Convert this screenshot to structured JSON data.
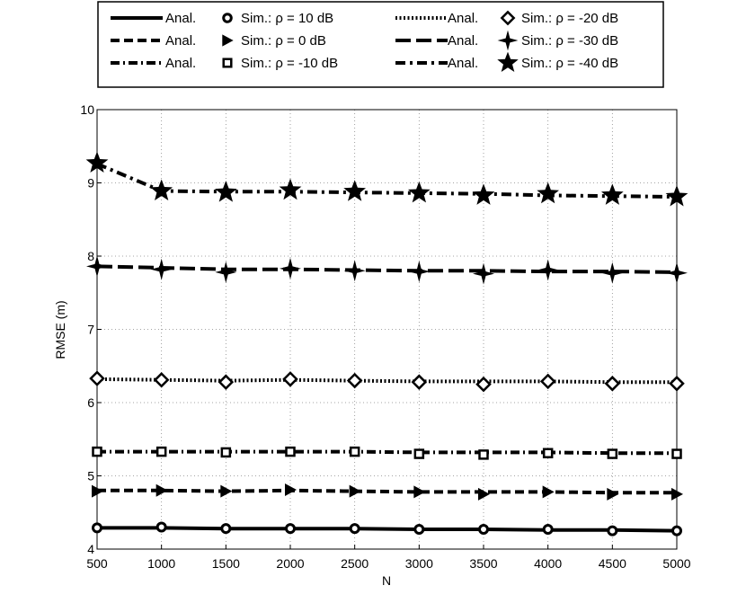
{
  "chart_data": {
    "type": "line",
    "title": "",
    "xlabel": "N",
    "ylabel": "RMSE (m)",
    "xlim": [
      500,
      5000
    ],
    "ylim": [
      4,
      10
    ],
    "x": [
      500,
      1000,
      1500,
      2000,
      2500,
      3000,
      3500,
      4000,
      4500,
      5000
    ],
    "xticks": [
      "500",
      "1000",
      "1500",
      "2000",
      "2500",
      "3000",
      "3500",
      "4000",
      "4500",
      "5000"
    ],
    "yticks": [
      "4",
      "5",
      "6",
      "7",
      "8",
      "9",
      "10"
    ],
    "grid": true,
    "legend_position": "top",
    "series": [
      {
        "name": "Anal.",
        "style": "solid",
        "role": "analytical",
        "values": [
          4.29,
          4.29,
          4.28,
          4.28,
          4.28,
          4.27,
          4.27,
          4.26,
          4.26,
          4.25
        ]
      },
      {
        "name": "Anal.",
        "style": "dashed",
        "role": "analytical",
        "values": [
          4.8,
          4.8,
          4.79,
          4.8,
          4.79,
          4.78,
          4.78,
          4.78,
          4.77,
          4.77
        ]
      },
      {
        "name": "Anal.",
        "style": "dashdot",
        "role": "analytical",
        "values": [
          5.33,
          5.33,
          5.33,
          5.33,
          5.33,
          5.32,
          5.32,
          5.32,
          5.31,
          5.31
        ]
      },
      {
        "name": "Anal.",
        "style": "dotted",
        "role": "analytical",
        "values": [
          6.32,
          6.31,
          6.3,
          6.31,
          6.3,
          6.29,
          6.29,
          6.29,
          6.28,
          6.28
        ]
      },
      {
        "name": "Anal.",
        "style": "longdash",
        "role": "analytical",
        "values": [
          7.86,
          7.84,
          7.82,
          7.82,
          7.81,
          7.8,
          7.8,
          7.79,
          7.79,
          7.78
        ]
      },
      {
        "name": "Anal.",
        "style": "dashdotdot",
        "role": "analytical",
        "values": [
          9.26,
          8.89,
          8.88,
          8.88,
          8.87,
          8.86,
          8.85,
          8.83,
          8.82,
          8.81
        ]
      },
      {
        "name": "Sim.: ρ = 10 dB",
        "marker": "circle",
        "role": "simulation",
        "values": [
          4.29,
          4.3,
          4.28,
          4.28,
          4.28,
          4.27,
          4.27,
          4.27,
          4.25,
          4.25
        ]
      },
      {
        "name": "Sim.: ρ = 0 dB",
        "marker": "triangle-right",
        "role": "simulation",
        "values": [
          4.79,
          4.8,
          4.79,
          4.81,
          4.79,
          4.78,
          4.75,
          4.78,
          4.75,
          4.75
        ]
      },
      {
        "name": "Sim.: ρ = -10 dB",
        "marker": "square",
        "role": "simulation",
        "values": [
          5.33,
          5.33,
          5.32,
          5.33,
          5.33,
          5.3,
          5.29,
          5.31,
          5.3,
          5.3
        ]
      },
      {
        "name": "Sim.: ρ = -20 dB",
        "marker": "diamond",
        "role": "simulation",
        "values": [
          6.33,
          6.31,
          6.28,
          6.32,
          6.3,
          6.28,
          6.25,
          6.29,
          6.26,
          6.26
        ]
      },
      {
        "name": "Sim.: ρ = -30 dB",
        "marker": "four-point-star",
        "role": "simulation",
        "values": [
          7.86,
          7.82,
          7.78,
          7.83,
          7.8,
          7.79,
          7.76,
          7.81,
          7.77,
          7.77
        ]
      },
      {
        "name": "Sim.: ρ = -40 dB",
        "marker": "five-point-star",
        "role": "simulation",
        "values": [
          9.27,
          8.89,
          8.87,
          8.9,
          8.88,
          8.86,
          8.83,
          8.85,
          8.83,
          8.81
        ]
      }
    ],
    "legend": [
      {
        "line_style": "solid",
        "line_label": "Anal.",
        "marker": "circle",
        "sim_label": "Sim.: ρ = 10 dB"
      },
      {
        "line_style": "dashed",
        "line_label": "Anal.",
        "marker": "triangle-right",
        "sim_label": "Sim.: ρ = 0 dB"
      },
      {
        "line_style": "dashdot",
        "line_label": "Anal.",
        "marker": "square",
        "sim_label": "Sim.: ρ = -10 dB"
      },
      {
        "line_style": "dotted",
        "line_label": "Anal.",
        "marker": "diamond",
        "sim_label": "Sim.: ρ = -20 dB"
      },
      {
        "line_style": "longdash",
        "line_label": "Anal.",
        "marker": "four-point-star",
        "sim_label": "Sim.: ρ = -30 dB"
      },
      {
        "line_style": "dashdotdot",
        "line_label": "Anal.",
        "marker": "five-point-star",
        "sim_label": "Sim.: ρ = -40 dB"
      }
    ]
  }
}
